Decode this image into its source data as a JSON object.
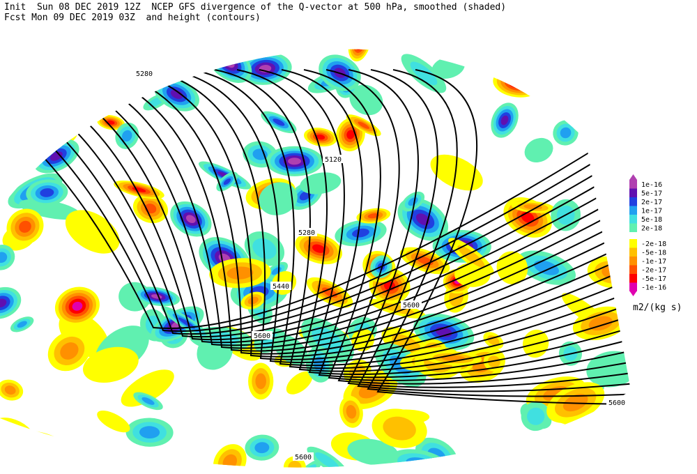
{
  "header": {
    "line1": "Init  Sun 08 DEC 2019 12Z  NCEP GFS divergence of the Q-vector at 500 hPa, smoothed (shaded)",
    "line2": "Fcst Mon 09 DEC 2019 03Z  and height (contours)"
  },
  "contour_labels": [
    "5280",
    "5120",
    "5280",
    "5440",
    "5600",
    "5600",
    "5600",
    "5600"
  ],
  "colorbar": {
    "labels": [
      "1e-16",
      "5e-17",
      "2e-17",
      "1e-17",
      "5e-18",
      "2e-18",
      "-2e-18",
      "-5e-18",
      "-1e-17",
      "-2e-17",
      "-5e-17",
      "-1e-16"
    ],
    "units": "m2/(kg s)"
  }
}
